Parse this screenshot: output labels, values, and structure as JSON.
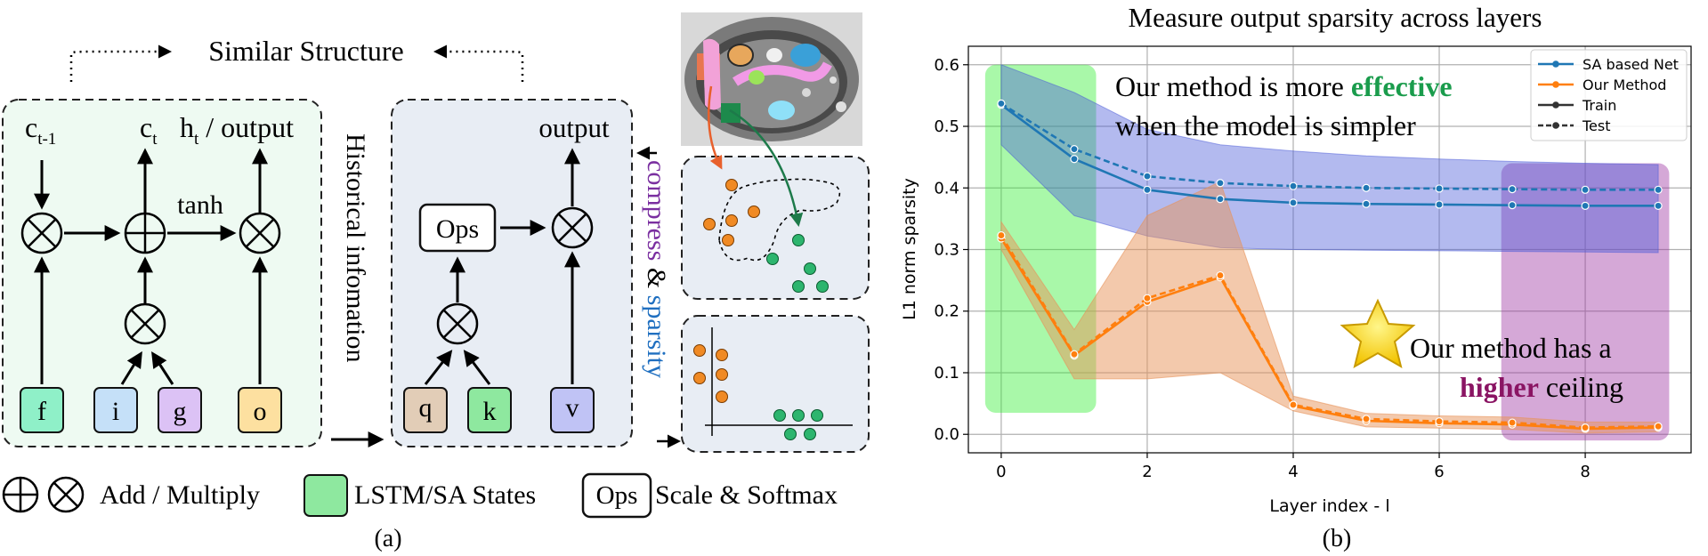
{
  "panel_a": {
    "similar_structure": "Similar Structure",
    "lstm": {
      "c_prev": "c",
      "c_prev_sub": "t-1",
      "c_t": "c",
      "c_t_sub": "t",
      "h_t": "h",
      "h_t_sub": "t",
      "h_t_rest": " / output",
      "tanh": "tanh",
      "gates": [
        "f",
        "i",
        "g",
        "o"
      ],
      "gate_colors": [
        "#8ff0c8",
        "#c5e0f8",
        "#dcc2f5",
        "#fde0a0"
      ]
    },
    "historical": "Historical infomation",
    "sa": {
      "output": "output",
      "ops": "Ops",
      "inputs": [
        "q",
        "k",
        "v"
      ],
      "input_colors": [
        "#e2cdb7",
        "#8ee89f",
        "#c0c3f5"
      ]
    },
    "compress_word": "compress",
    "amp": "&",
    "sparsity_word": "sparsity",
    "legend": {
      "add_multiply": "Add / Multiply",
      "states": "LSTM/SA States",
      "ops_box": "Ops",
      "scale_softmax": "Scale & Softmax"
    },
    "caption": "(a)"
  },
  "panel_b": {
    "caption": "(b)",
    "annot_effective_pre": "Our method is more ",
    "annot_effective_bold": "effective",
    "annot_effective_line2": "when the model is simpler",
    "annot_ceiling_line1": "Our method has a",
    "annot_ceiling_bold": "higher",
    "annot_ceiling_rest": " ceiling"
  },
  "chart_data": {
    "type": "line",
    "title": "Measure output sparsity across layers",
    "xlabel": "Layer index - l",
    "ylabel": "L1 norm sparsity",
    "xlim": [
      -0.45,
      9.45
    ],
    "ylim": [
      -0.03,
      0.63
    ],
    "xticks": [
      0,
      2,
      4,
      6,
      8
    ],
    "yticks": [
      0.0,
      0.1,
      0.2,
      0.3,
      0.4,
      0.5,
      0.6
    ],
    "grid": true,
    "legend_position": "top-right",
    "legend": [
      {
        "label": "SA based Net",
        "color": "#1f77b4",
        "style": "solid",
        "marker": true
      },
      {
        "label": "Our Method",
        "color": "#ff7f0e",
        "style": "solid",
        "marker": true
      },
      {
        "label": "Train",
        "color": "#333333",
        "style": "solid",
        "marker": true
      },
      {
        "label": "Test",
        "color": "#333333",
        "style": "dashed",
        "marker": true
      }
    ],
    "x": [
      0,
      1,
      2,
      3,
      4,
      5,
      6,
      7,
      8,
      9
    ],
    "series": [
      {
        "name": "SA based Net",
        "split": "Train",
        "color": "#1f77b4",
        "style": "solid",
        "values": [
          0.535,
          0.447,
          0.397,
          0.382,
          0.376,
          0.374,
          0.373,
          0.372,
          0.371,
          0.371
        ]
      },
      {
        "name": "SA based Net",
        "split": "Test",
        "color": "#1f77b4",
        "style": "dashed",
        "values": [
          0.537,
          0.463,
          0.419,
          0.408,
          0.403,
          0.4,
          0.399,
          0.398,
          0.397,
          0.397
        ]
      },
      {
        "name": "Our Method",
        "split": "Train",
        "color": "#ff7f0e",
        "style": "solid",
        "values": [
          0.318,
          0.128,
          0.215,
          0.255,
          0.046,
          0.022,
          0.018,
          0.016,
          0.009,
          0.011
        ]
      },
      {
        "name": "Our Method",
        "split": "Test",
        "color": "#ff7f0e",
        "style": "dashed",
        "values": [
          0.323,
          0.13,
          0.221,
          0.258,
          0.048,
          0.025,
          0.021,
          0.019,
          0.011,
          0.013
        ]
      }
    ],
    "bands": [
      {
        "series": "SA based Net",
        "color": "#4a5ad8",
        "upper": [
          0.6,
          0.555,
          0.495,
          0.47,
          0.46,
          0.452,
          0.447,
          0.443,
          0.44,
          0.438
        ],
        "lower": [
          0.47,
          0.355,
          0.322,
          0.303,
          0.3,
          0.299,
          0.298,
          0.297,
          0.296,
          0.295
        ]
      },
      {
        "series": "Our Method",
        "color": "#e8935a",
        "upper": [
          0.345,
          0.17,
          0.355,
          0.41,
          0.062,
          0.034,
          0.03,
          0.028,
          0.02,
          0.02
        ]
      },
      {
        "series": "Our Method",
        "color": "#e8935a",
        "lower": [
          0.3,
          0.09,
          0.09,
          0.1,
          0.038,
          0.012,
          0.01,
          0.008,
          0.002,
          0.004
        ]
      }
    ],
    "highlights": [
      {
        "x_range": [
          -0.22,
          1.3
        ],
        "y_range": [
          0.035,
          0.6
        ],
        "color": "#33ee33",
        "label": "effective"
      },
      {
        "x_range": [
          6.85,
          9.15
        ],
        "y_range": [
          -0.01,
          0.44
        ],
        "color": "#9b30a0",
        "label": "higher ceiling"
      }
    ]
  },
  "colors": {
    "lstm_bg": "#eefaf2",
    "sa_bg": "#e8edf4",
    "green_dot": "#2db56e",
    "orange_dot": "#f08a24",
    "compress": "#7a2fa0",
    "sparsity": "#1f6fc0",
    "effective": "#1a9c4c",
    "higher": "#8a1463"
  }
}
